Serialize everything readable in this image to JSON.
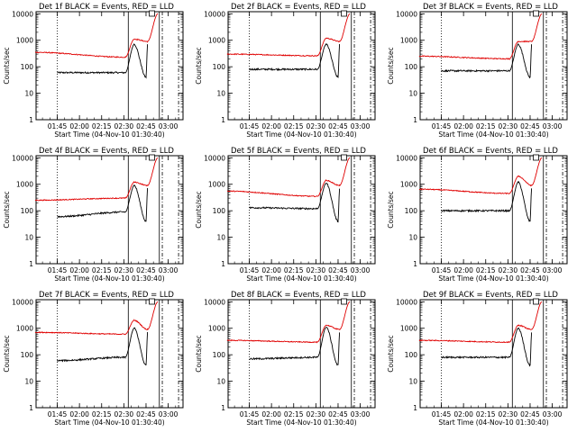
{
  "chart_data": [
    {
      "type": "line",
      "title": "Det 1f BLACK = Events, RED = LLD",
      "xlabel": "Start Time (04-Nov-10 01:30:40)",
      "ylabel": "Counts/sec",
      "x_ticks": [
        "01:45",
        "02:00",
        "02:15",
        "02:30",
        "02:45",
        "03:00"
      ],
      "y_ticks": [
        "1",
        "10",
        "100",
        "1000",
        "10000"
      ],
      "ylim": [
        1,
        12000
      ],
      "y_scale": "log",
      "markers": {
        "dotted": "01:45",
        "solid": [
          "02:33",
          "02:54"
        ],
        "dashed": [
          "02:56",
          "03:07"
        ],
        "box": "02:49"
      },
      "series": [
        {
          "color": "#000000",
          "values": [
            {
              "t": "01:45",
              "v": 60
            },
            {
              "t": "02:31",
              "v": 60
            },
            {
              "t": "02:37",
              "v": 700
            },
            {
              "t": "02:45",
              "v": 40
            },
            {
              "t": "02:46",
              "v": 700
            }
          ]
        },
        {
          "color": "#e00000",
          "values": [
            {
              "t": "01:30",
              "v": 350
            },
            {
              "t": "02:31",
              "v": 230
            },
            {
              "t": "02:37",
              "v": 1100
            },
            {
              "t": "02:46",
              "v": 900
            },
            {
              "t": "02:53",
              "v": 10000
            }
          ]
        }
      ]
    },
    {
      "type": "line",
      "title": "Det 2f BLACK = Events, RED = LLD",
      "xlabel": "Start Time (04-Nov-10 01:30:40)",
      "ylabel": "Counts/sec",
      "x_ticks": [
        "01:45",
        "02:00",
        "02:15",
        "02:30",
        "02:45",
        "03:00"
      ],
      "y_ticks": [
        "1",
        "10",
        "100",
        "1000",
        "10000"
      ],
      "ylim": [
        1,
        12000
      ],
      "y_scale": "log",
      "markers": {
        "dotted": "01:45",
        "solid": [
          "02:33",
          "02:54"
        ],
        "dashed": [
          "02:56",
          "03:07"
        ],
        "box": "02:49"
      },
      "series": [
        {
          "color": "#000000",
          "values": [
            {
              "t": "01:45",
              "v": 80
            },
            {
              "t": "02:31",
              "v": 80
            },
            {
              "t": "02:37",
              "v": 700
            },
            {
              "t": "02:45",
              "v": 40
            },
            {
              "t": "02:46",
              "v": 700
            }
          ]
        },
        {
          "color": "#e00000",
          "values": [
            {
              "t": "01:30",
              "v": 300
            },
            {
              "t": "02:31",
              "v": 260
            },
            {
              "t": "02:37",
              "v": 1200
            },
            {
              "t": "02:46",
              "v": 900
            },
            {
              "t": "02:53",
              "v": 10000
            }
          ]
        }
      ]
    },
    {
      "type": "line",
      "title": "Det 3f BLACK = Events, RED = LLD",
      "xlabel": "Start Time (04-Nov-10 01:30:40)",
      "ylabel": "Counts/sec",
      "x_ticks": [
        "01:45",
        "02:00",
        "02:15",
        "02:30",
        "02:45",
        "03:00"
      ],
      "y_ticks": [
        "1",
        "10",
        "100",
        "1000",
        "10000"
      ],
      "ylim": [
        1,
        12000
      ],
      "y_scale": "log",
      "markers": {
        "dotted": "01:45",
        "solid": [
          "02:33",
          "02:54"
        ],
        "dashed": [
          "02:56",
          "03:07"
        ],
        "box": "02:49"
      },
      "series": [
        {
          "color": "#000000",
          "values": [
            {
              "t": "01:45",
              "v": 70
            },
            {
              "t": "02:31",
              "v": 70
            },
            {
              "t": "02:37",
              "v": 700
            },
            {
              "t": "02:45",
              "v": 40
            },
            {
              "t": "02:46",
              "v": 700
            }
          ]
        },
        {
          "color": "#e00000",
          "values": [
            {
              "t": "01:30",
              "v": 250
            },
            {
              "t": "02:31",
              "v": 200
            },
            {
              "t": "02:37",
              "v": 900
            },
            {
              "t": "02:46",
              "v": 900
            },
            {
              "t": "02:53",
              "v": 10000
            }
          ]
        }
      ]
    },
    {
      "type": "line",
      "title": "Det 4f BLACK = Events, RED = LLD",
      "xlabel": "Start Time (04-Nov-10 01:30:40)",
      "ylabel": "Counts/sec",
      "x_ticks": [
        "01:45",
        "02:00",
        "02:15",
        "02:30",
        "02:45",
        "03:00"
      ],
      "y_ticks": [
        "1",
        "10",
        "100",
        "1000",
        "10000"
      ],
      "ylim": [
        1,
        12000
      ],
      "y_scale": "log",
      "markers": {
        "dotted": "01:45",
        "solid": [
          "02:33",
          "02:54"
        ],
        "dashed": [
          "02:56",
          "03:07"
        ],
        "box": "02:49"
      },
      "series": [
        {
          "color": "#000000",
          "values": [
            {
              "t": "01:45",
              "v": 60
            },
            {
              "t": "02:31",
              "v": 90
            },
            {
              "t": "02:37",
              "v": 900
            },
            {
              "t": "02:45",
              "v": 40
            },
            {
              "t": "02:46",
              "v": 700
            }
          ]
        },
        {
          "color": "#e00000",
          "values": [
            {
              "t": "01:30",
              "v": 250
            },
            {
              "t": "02:31",
              "v": 300
            },
            {
              "t": "02:37",
              "v": 1200
            },
            {
              "t": "02:46",
              "v": 900
            },
            {
              "t": "02:53",
              "v": 10000
            }
          ]
        }
      ]
    },
    {
      "type": "line",
      "title": "Det 5f BLACK = Events, RED = LLD",
      "xlabel": "Start Time (04-Nov-10 01:30:40)",
      "ylabel": "Counts/sec",
      "x_ticks": [
        "01:45",
        "02:00",
        "02:15",
        "02:30",
        "02:45",
        "03:00"
      ],
      "y_ticks": [
        "1",
        "10",
        "100",
        "1000",
        "10000"
      ],
      "ylim": [
        1,
        12000
      ],
      "y_scale": "log",
      "markers": {
        "dotted": "01:45",
        "solid": [
          "02:33",
          "02:54"
        ],
        "dashed": [
          "02:56",
          "03:07"
        ],
        "box": "02:49"
      },
      "series": [
        {
          "color": "#000000",
          "values": [
            {
              "t": "01:45",
              "v": 130
            },
            {
              "t": "02:31",
              "v": 120
            },
            {
              "t": "02:37",
              "v": 1100
            },
            {
              "t": "02:45",
              "v": 40
            },
            {
              "t": "02:46",
              "v": 700
            }
          ]
        },
        {
          "color": "#e00000",
          "values": [
            {
              "t": "01:30",
              "v": 550
            },
            {
              "t": "02:31",
              "v": 350
            },
            {
              "t": "02:37",
              "v": 1400
            },
            {
              "t": "02:46",
              "v": 900
            },
            {
              "t": "02:53",
              "v": 10000
            }
          ]
        }
      ]
    },
    {
      "type": "line",
      "title": "Det 6f BLACK = Events, RED = LLD",
      "xlabel": "Start Time (04-Nov-10 01:30:40)",
      "ylabel": "Counts/sec",
      "x_ticks": [
        "01:45",
        "02:00",
        "02:15",
        "02:30",
        "02:45",
        "03:00"
      ],
      "y_ticks": [
        "1",
        "10",
        "100",
        "1000",
        "10000"
      ],
      "ylim": [
        1,
        12000
      ],
      "y_scale": "log",
      "markers": {
        "dotted": "01:45",
        "solid": [
          "02:33",
          "02:54"
        ],
        "dashed": [
          "02:56",
          "03:07"
        ],
        "box": "02:49"
      },
      "series": [
        {
          "color": "#000000",
          "values": [
            {
              "t": "01:45",
              "v": 100
            },
            {
              "t": "02:31",
              "v": 100
            },
            {
              "t": "02:37",
              "v": 1200
            },
            {
              "t": "02:45",
              "v": 40
            },
            {
              "t": "02:46",
              "v": 700
            }
          ]
        },
        {
          "color": "#e00000",
          "values": [
            {
              "t": "01:30",
              "v": 650
            },
            {
              "t": "02:31",
              "v": 450
            },
            {
              "t": "02:37",
              "v": 2000
            },
            {
              "t": "02:46",
              "v": 900
            },
            {
              "t": "02:53",
              "v": 10000
            }
          ]
        }
      ]
    },
    {
      "type": "line",
      "title": "Det 7f BLACK = Events, RED = LLD",
      "xlabel": "Start Time (04-Nov-10 01:30:40)",
      "ylabel": "Counts/sec",
      "x_ticks": [
        "01:45",
        "02:00",
        "02:15",
        "02:30",
        "02:45",
        "03:00"
      ],
      "y_ticks": [
        "1",
        "10",
        "100",
        "1000",
        "10000"
      ],
      "ylim": [
        1,
        12000
      ],
      "y_scale": "log",
      "markers": {
        "dotted": "01:45",
        "solid": [
          "02:33",
          "02:54"
        ],
        "dashed": [
          "02:56",
          "03:07"
        ],
        "box": "02:49"
      },
      "series": [
        {
          "color": "#000000",
          "values": [
            {
              "t": "01:45",
              "v": 60
            },
            {
              "t": "02:31",
              "v": 80
            },
            {
              "t": "02:37",
              "v": 1000
            },
            {
              "t": "02:45",
              "v": 40
            },
            {
              "t": "02:46",
              "v": 700
            }
          ]
        },
        {
          "color": "#e00000",
          "values": [
            {
              "t": "01:30",
              "v": 700
            },
            {
              "t": "02:31",
              "v": 600
            },
            {
              "t": "02:37",
              "v": 2000
            },
            {
              "t": "02:46",
              "v": 900
            },
            {
              "t": "02:53",
              "v": 10000
            }
          ]
        }
      ]
    },
    {
      "type": "line",
      "title": "Det 8f BLACK = Events, RED = LLD",
      "xlabel": "Start Time (04-Nov-10 01:30:40)",
      "ylabel": "Counts/sec",
      "x_ticks": [
        "01:45",
        "02:00",
        "02:15",
        "02:30",
        "02:45",
        "03:00"
      ],
      "y_ticks": [
        "1",
        "10",
        "100",
        "1000",
        "10000"
      ],
      "ylim": [
        1,
        12000
      ],
      "y_scale": "log",
      "markers": {
        "dotted": "01:45",
        "solid": [
          "02:33",
          "02:54"
        ],
        "dashed": [
          "02:56",
          "03:07"
        ],
        "box": "02:49"
      },
      "series": [
        {
          "color": "#000000",
          "values": [
            {
              "t": "01:45",
              "v": 70
            },
            {
              "t": "02:31",
              "v": 80
            },
            {
              "t": "02:37",
              "v": 1100
            },
            {
              "t": "02:45",
              "v": 40
            },
            {
              "t": "02:46",
              "v": 700
            }
          ]
        },
        {
          "color": "#e00000",
          "values": [
            {
              "t": "01:30",
              "v": 350
            },
            {
              "t": "02:31",
              "v": 300
            },
            {
              "t": "02:37",
              "v": 1300
            },
            {
              "t": "02:46",
              "v": 900
            },
            {
              "t": "02:53",
              "v": 10000
            }
          ]
        }
      ]
    },
    {
      "type": "line",
      "title": "Det 9f BLACK = Events, RED = LLD",
      "xlabel": "Start Time (04-Nov-10 01:30:40)",
      "ylabel": "Counts/sec",
      "x_ticks": [
        "01:45",
        "02:00",
        "02:15",
        "02:30",
        "02:45",
        "03:00"
      ],
      "y_ticks": [
        "1",
        "10",
        "100",
        "1000",
        "10000"
      ],
      "ylim": [
        1,
        12000
      ],
      "y_scale": "log",
      "markers": {
        "dotted": "01:45",
        "solid": [
          "02:33",
          "02:54"
        ],
        "dashed": [
          "02:56",
          "03:07"
        ],
        "box": "02:49"
      },
      "series": [
        {
          "color": "#000000",
          "values": [
            {
              "t": "01:45",
              "v": 80
            },
            {
              "t": "02:31",
              "v": 80
            },
            {
              "t": "02:37",
              "v": 1000
            },
            {
              "t": "02:45",
              "v": 40
            },
            {
              "t": "02:46",
              "v": 700
            }
          ]
        },
        {
          "color": "#e00000",
          "values": [
            {
              "t": "01:30",
              "v": 350
            },
            {
              "t": "02:31",
              "v": 300
            },
            {
              "t": "02:37",
              "v": 1300
            },
            {
              "t": "02:46",
              "v": 900
            },
            {
              "t": "02:53",
              "v": 10000
            }
          ]
        }
      ]
    }
  ]
}
